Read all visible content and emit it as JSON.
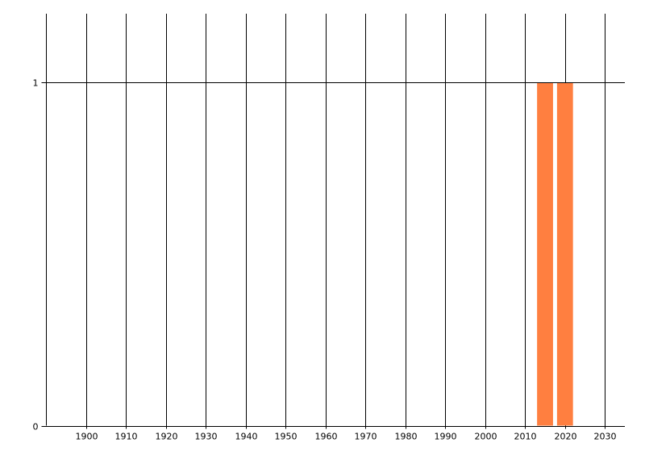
{
  "chart_data": {
    "type": "bar",
    "title": "",
    "xlabel": "",
    "ylabel": "",
    "x": [
      2015,
      2020
    ],
    "values": [
      1,
      1
    ],
    "bar_width_years": 4,
    "xlim": [
      1890,
      2035
    ],
    "ylim": [
      0,
      1.2
    ],
    "x_ticks": [
      1900,
      1910,
      1920,
      1930,
      1940,
      1950,
      1960,
      1970,
      1980,
      1990,
      2000,
      2010,
      2020,
      2030
    ],
    "y_ticks": [
      0,
      1
    ],
    "grid": true,
    "bar_color": "#FF7F40",
    "grid_color": "#000000"
  }
}
